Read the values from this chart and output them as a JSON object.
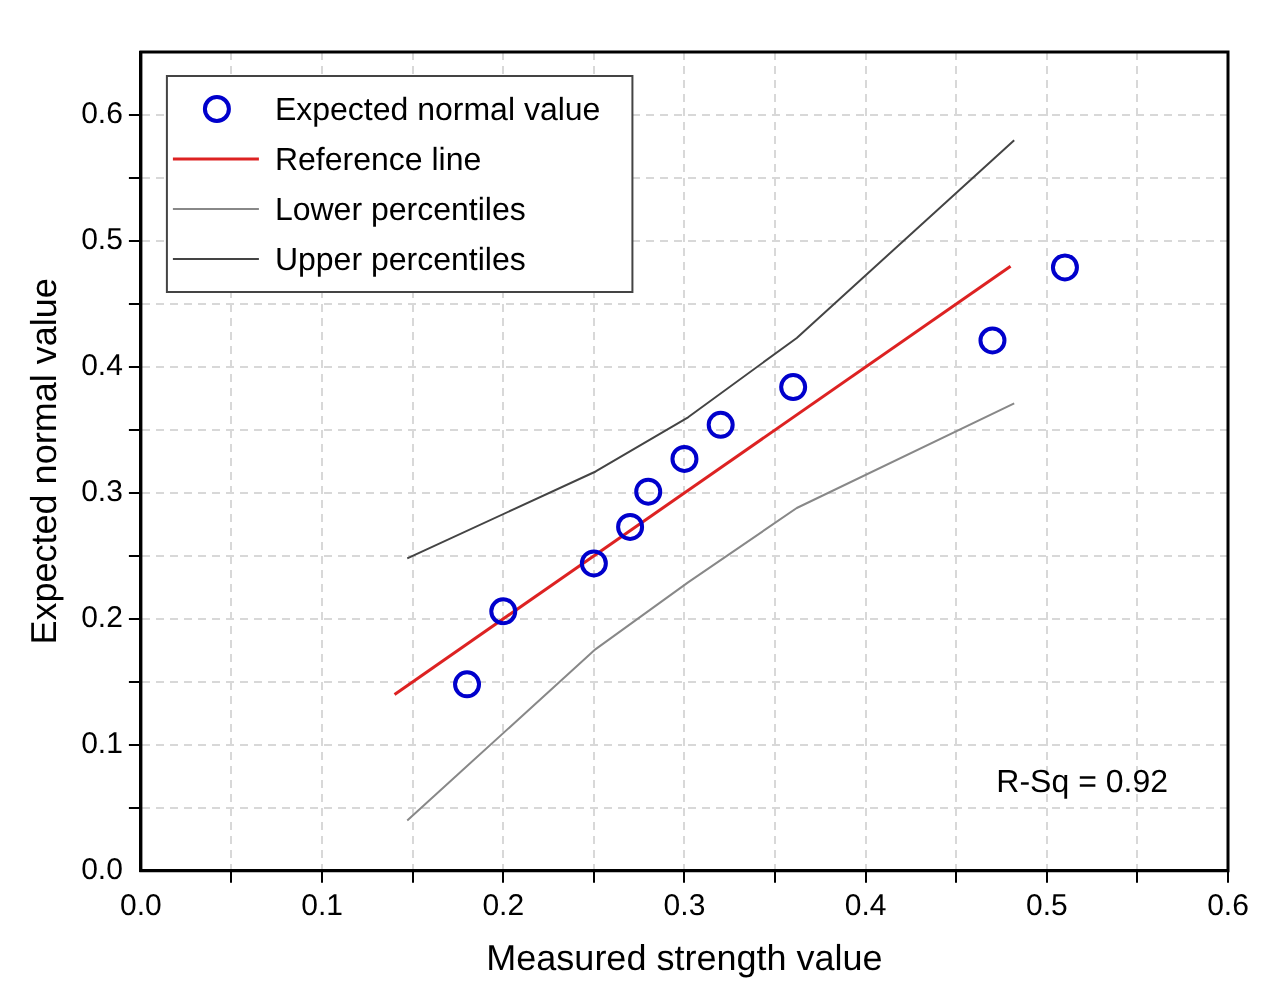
{
  "chart_data": {
    "type": "scatter",
    "xlabel": "Measured strength value",
    "ylabel": "Expected normal value",
    "xlim": [
      0,
      0.6
    ],
    "ylim": [
      0,
      0.65
    ],
    "xticks": [
      {
        "value": 0,
        "label": "0.0"
      },
      {
        "value": 0.05,
        "label": null
      },
      0.1,
      {
        "value": 0.15,
        "label": null
      },
      0.2,
      {
        "value": 0.25,
        "label": null
      },
      0.3,
      {
        "value": 0.35,
        "label": null
      },
      0.4,
      {
        "value": 0.45,
        "label": null
      },
      0.5,
      {
        "value": 0.55,
        "label": null
      },
      0.6
    ],
    "yticks": [
      {
        "value": 0,
        "label": "0.0"
      },
      {
        "value": 0.05,
        "label": null
      },
      0.1,
      {
        "value": 0.15,
        "label": null
      },
      0.2,
      {
        "value": 0.25,
        "label": null
      },
      0.3,
      {
        "value": 0.35,
        "label": null
      },
      0.4,
      {
        "value": 0.45,
        "label": null
      },
      0.5,
      {
        "value": 0.55,
        "label": null
      },
      0.6
    ],
    "grid": true,
    "legend": "top left",
    "series": [
      {
        "name": "Expected normal value",
        "marker": "circle",
        "color": "#0000cc",
        "x": [
          0.18,
          0.2,
          0.25,
          0.27,
          0.28,
          0.3,
          0.32,
          0.36,
          0.47,
          0.51
        ],
        "values": [
          0.148,
          0.206,
          0.244,
          0.273,
          0.301,
          0.327,
          0.354,
          0.384,
          0.421,
          0.479
        ]
      },
      {
        "name": "Reference line",
        "type": "line",
        "marker": "none",
        "color": "#dd2222",
        "x": [
          0.14,
          0.48
        ],
        "values": [
          0.14,
          0.48
        ]
      },
      {
        "name": "Lower percentiles",
        "type": "line",
        "marker": "none",
        "color": "#888888",
        "x": [
          0.147,
          0.251,
          0.302,
          0.362,
          0.482
        ],
        "values": [
          0.04,
          0.176,
          0.229,
          0.288,
          0.371
        ]
      },
      {
        "name": "Upper percentiles",
        "type": "line",
        "marker": "none",
        "color": "#444444",
        "x": [
          0.147,
          0.251,
          0.302,
          0.362,
          0.482
        ],
        "values": [
          0.248,
          0.317,
          0.36,
          0.423,
          0.58
        ]
      }
    ],
    "annotations": [
      "R-Sq = 0.92"
    ]
  }
}
